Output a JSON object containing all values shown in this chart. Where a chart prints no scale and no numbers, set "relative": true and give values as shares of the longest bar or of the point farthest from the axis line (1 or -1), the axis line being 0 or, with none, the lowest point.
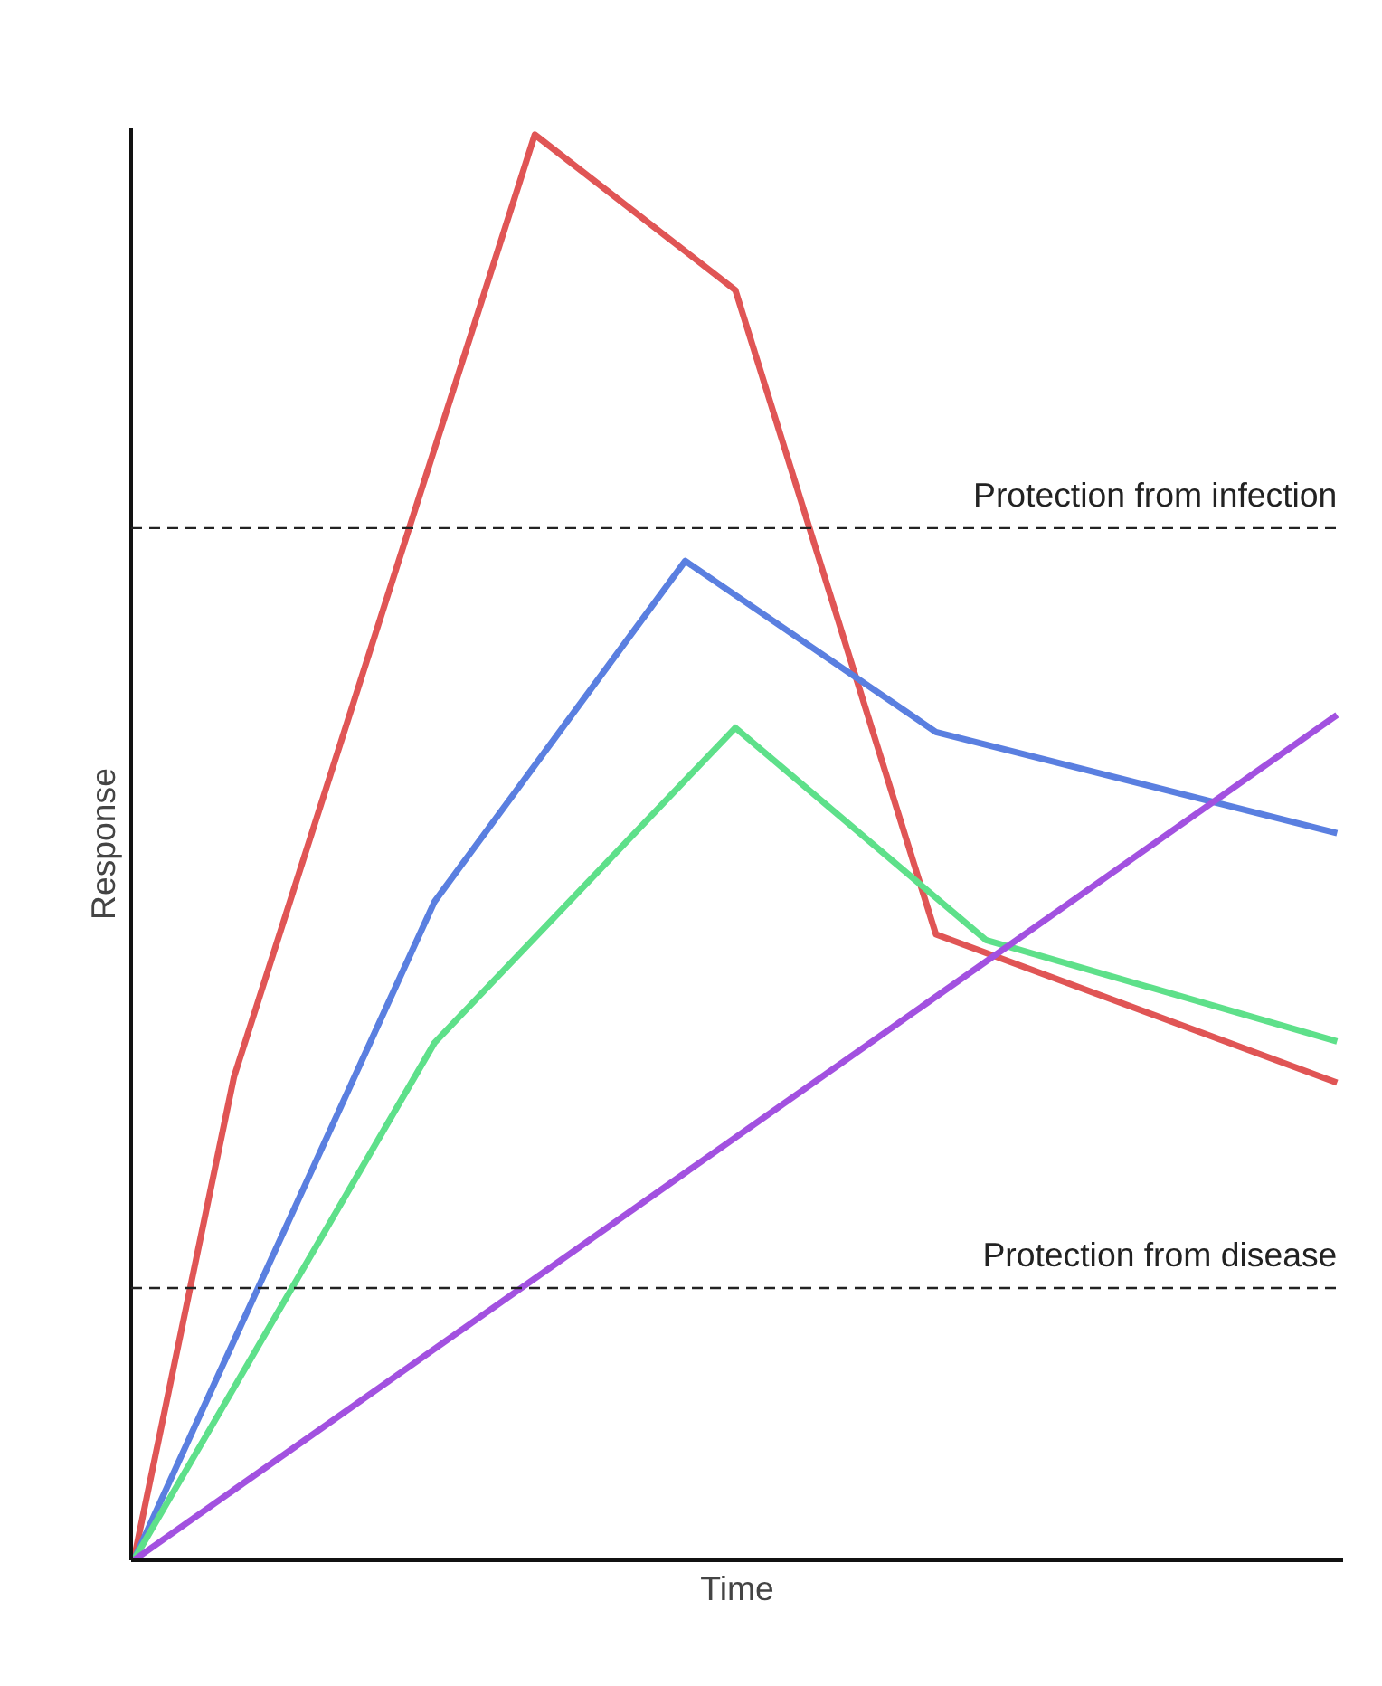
{
  "chart_data": {
    "type": "line",
    "relative": true,
    "xlabel": "Time",
    "ylabel": "Response",
    "categories": [
      null,
      null,
      null,
      null,
      null,
      null,
      null,
      null,
      null,
      null,
      null,
      null,
      null,
      null,
      null,
      null,
      null,
      null,
      null,
      null,
      null,
      null,
      null,
      null,
      null
    ],
    "series": [
      {
        "color": "#e05555",
        "values": [
          0,
          null,
          0.339,
          null,
          null,
          null,
          null,
          null,
          1,
          null,
          null,
          null,
          0.891,
          null,
          null,
          null,
          0.439,
          null,
          null,
          null,
          null,
          null,
          null,
          null,
          0.335
        ]
      },
      {
        "color": "#5a7fe0",
        "values": [
          0,
          null,
          null,
          null,
          null,
          null,
          0.462,
          null,
          null,
          null,
          null,
          0.701,
          null,
          null,
          null,
          null,
          0.581,
          null,
          null,
          null,
          null,
          null,
          null,
          null,
          0.51
        ]
      },
      {
        "color": "#5ee08a",
        "values": [
          0,
          null,
          null,
          null,
          null,
          null,
          0.363,
          null,
          null,
          null,
          null,
          null,
          0.584,
          null,
          null,
          null,
          null,
          0.435,
          null,
          null,
          null,
          null,
          null,
          null,
          0.364
        ]
      },
      {
        "color": "#a251e0",
        "values": [
          0,
          null,
          null,
          null,
          null,
          null,
          null,
          null,
          null,
          null,
          null,
          null,
          null,
          null,
          null,
          null,
          null,
          null,
          null,
          null,
          null,
          null,
          null,
          null,
          0.593
        ]
      }
    ],
    "ref_lines": [
      {
        "axis": "y",
        "value": 0.724,
        "label": "Protection from infection",
        "color": "#222222",
        "line_style": "dashed"
      },
      {
        "axis": "y",
        "value": 0.191,
        "label": "Protection from disease",
        "color": "#222222",
        "line_style": "dashed"
      }
    ]
  }
}
